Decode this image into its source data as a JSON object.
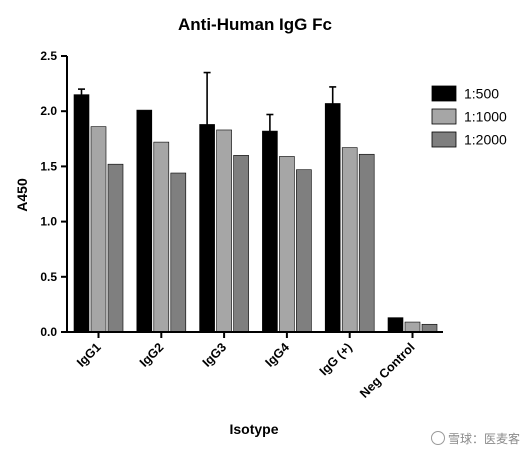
{
  "chart_data": {
    "type": "bar",
    "title": "Anti-Human IgG Fc",
    "xlabel": "Isotype",
    "ylabel": "A450",
    "categories": [
      "IgG1",
      "IgG2",
      "IgG3",
      "IgG4",
      "IgG (+)",
      "Neg Control"
    ],
    "ylim": [
      0,
      2.5
    ],
    "yticks": [
      "0.0",
      "0.5",
      "1.0",
      "1.5",
      "2.0",
      "2.5"
    ],
    "legend_position": "right",
    "grid": false,
    "series": [
      {
        "name": "1:500",
        "color": "#000000",
        "values": [
          2.15,
          2.01,
          1.88,
          1.82,
          2.07,
          0.13
        ],
        "error": [
          0.05,
          0.0,
          0.47,
          0.15,
          0.15,
          0.0
        ]
      },
      {
        "name": "1:1000",
        "color": "#a6a6a6",
        "values": [
          1.86,
          1.72,
          1.83,
          1.59,
          1.67,
          0.09
        ],
        "error": [
          0,
          0,
          0,
          0,
          0,
          0
        ]
      },
      {
        "name": "1:2000",
        "color": "#7f7f7f",
        "values": [
          1.52,
          1.44,
          1.6,
          1.47,
          1.61,
          0.07
        ],
        "error": [
          0,
          0,
          0,
          0,
          0,
          0
        ]
      }
    ]
  },
  "watermark": {
    "text": "雪球：医麦客",
    "icon": "snowball-icon"
  }
}
